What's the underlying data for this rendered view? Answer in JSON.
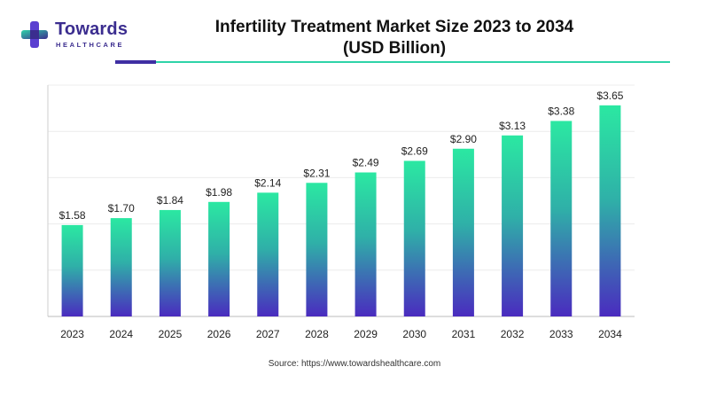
{
  "brand": {
    "name": "Towards",
    "sub": "HEALTHCARE",
    "colors": {
      "primary": "#3b2d8f",
      "accent": "#2ed3a8"
    }
  },
  "chart_data": {
    "type": "bar",
    "title": "Infertility Treatment Market Size 2023 to 2034",
    "subtitle": "(USD Billion)",
    "categories": [
      "2023",
      "2024",
      "2025",
      "2026",
      "2027",
      "2028",
      "2029",
      "2030",
      "2031",
      "2032",
      "2033",
      "2034"
    ],
    "values": [
      1.58,
      1.7,
      1.84,
      1.98,
      2.14,
      2.31,
      2.49,
      2.69,
      2.9,
      3.13,
      3.38,
      3.65
    ],
    "data_labels": [
      "$1.58",
      "$1.70",
      "$1.84",
      "$1.98",
      "$2.14",
      "$2.31",
      "$2.49",
      "$2.69",
      "$2.90",
      "$3.13",
      "$3.38",
      "$3.65"
    ],
    "xlabel": "",
    "ylabel": "",
    "ylim": [
      0,
      4
    ],
    "grid": true,
    "bar_gradient": {
      "top": "#2be8a2",
      "bottom": "#4a2bbf"
    }
  },
  "source": "Source: https://www.towardshealthcare.com"
}
